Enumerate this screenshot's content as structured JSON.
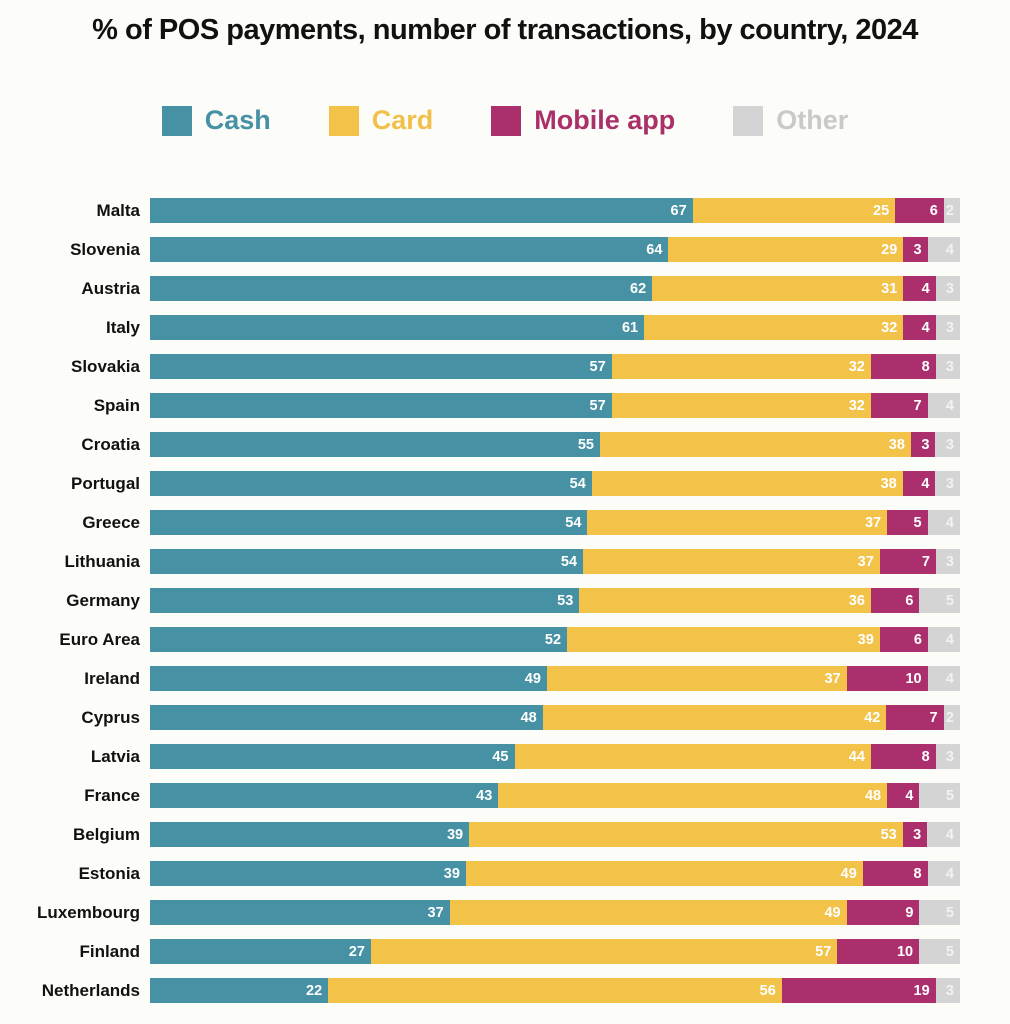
{
  "title": "% of POS payments, number of transactions, by country, 2024",
  "colors": {
    "cash": "#4691a4",
    "card": "#f2c249",
    "mobile_app": "#ac2f6d",
    "other": "#d4d4d4"
  },
  "legend": [
    {
      "label": "Cash",
      "swatch_color": "#4691a4",
      "label_color": "#4691a4"
    },
    {
      "label": "Card",
      "swatch_color": "#f2c249",
      "label_color": "#f0c04a"
    },
    {
      "label": "Mobile app",
      "swatch_color": "#ac2f6d",
      "label_color": "#a93069"
    },
    {
      "label": "Other",
      "swatch_color": "#d4d4d4",
      "label_color": "#c9c9c9"
    }
  ],
  "chart_data": {
    "type": "bar",
    "stacked": true,
    "orientation": "horizontal",
    "title": "% of POS payments, number of transactions, by country, 2024",
    "xlim": [
      0,
      100
    ],
    "legend_position": "top",
    "series": [
      "Cash",
      "Card",
      "Mobile app",
      "Other"
    ],
    "categories": [
      "Malta",
      "Slovenia",
      "Austria",
      "Italy",
      "Slovakia",
      "Spain",
      "Croatia",
      "Portugal",
      "Greece",
      "Lithuania",
      "Germany",
      "Euro Area",
      "Ireland",
      "Cyprus",
      "Latvia",
      "France",
      "Belgium",
      "Estonia",
      "Luxembourg",
      "Finland",
      "Netherlands"
    ],
    "rows": [
      {
        "country": "Malta",
        "values": [
          67,
          25,
          6,
          2
        ]
      },
      {
        "country": "Slovenia",
        "values": [
          64,
          29,
          3,
          4
        ]
      },
      {
        "country": "Austria",
        "values": [
          62,
          31,
          4,
          3
        ]
      },
      {
        "country": "Italy",
        "values": [
          61,
          32,
          4,
          3
        ]
      },
      {
        "country": "Slovakia",
        "values": [
          57,
          32,
          8,
          3
        ]
      },
      {
        "country": "Spain",
        "values": [
          57,
          32,
          7,
          4
        ]
      },
      {
        "country": "Croatia",
        "values": [
          55,
          38,
          3,
          3
        ]
      },
      {
        "country": "Portugal",
        "values": [
          54,
          38,
          4,
          3
        ]
      },
      {
        "country": "Greece",
        "values": [
          54,
          37,
          5,
          4
        ]
      },
      {
        "country": "Lithuania",
        "values": [
          54,
          37,
          7,
          3
        ]
      },
      {
        "country": "Germany",
        "values": [
          53,
          36,
          6,
          5
        ]
      },
      {
        "country": "Euro Area",
        "values": [
          52,
          39,
          6,
          4
        ]
      },
      {
        "country": "Ireland",
        "values": [
          49,
          37,
          10,
          4
        ]
      },
      {
        "country": "Cyprus",
        "values": [
          48,
          42,
          7,
          2
        ]
      },
      {
        "country": "Latvia",
        "values": [
          45,
          44,
          8,
          3
        ]
      },
      {
        "country": "France",
        "values": [
          43,
          48,
          4,
          5
        ]
      },
      {
        "country": "Belgium",
        "values": [
          39,
          53,
          3,
          4
        ]
      },
      {
        "country": "Estonia",
        "values": [
          39,
          49,
          8,
          4
        ]
      },
      {
        "country": "Luxembourg",
        "values": [
          37,
          49,
          9,
          5
        ]
      },
      {
        "country": "Finland",
        "values": [
          27,
          57,
          10,
          5
        ]
      },
      {
        "country": "Netherlands",
        "values": [
          22,
          56,
          19,
          3
        ]
      }
    ]
  }
}
